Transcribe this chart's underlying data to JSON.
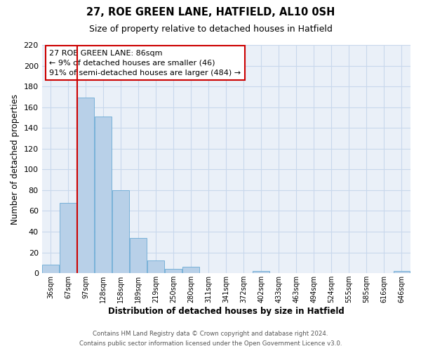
{
  "title": "27, ROE GREEN LANE, HATFIELD, AL10 0SH",
  "subtitle": "Size of property relative to detached houses in Hatfield",
  "xlabel": "Distribution of detached houses by size in Hatfield",
  "ylabel": "Number of detached properties",
  "bar_labels": [
    "36sqm",
    "67sqm",
    "97sqm",
    "128sqm",
    "158sqm",
    "189sqm",
    "219sqm",
    "250sqm",
    "280sqm",
    "311sqm",
    "341sqm",
    "372sqm",
    "402sqm",
    "433sqm",
    "463sqm",
    "494sqm",
    "524sqm",
    "555sqm",
    "585sqm",
    "616sqm",
    "646sqm"
  ],
  "bar_heights": [
    8,
    68,
    169,
    151,
    80,
    34,
    12,
    4,
    6,
    0,
    0,
    0,
    2,
    0,
    0,
    0,
    0,
    0,
    0,
    0,
    2
  ],
  "bar_color": "#b8d0e8",
  "bar_edge_color": "#6aaad4",
  "vline_color": "#cc0000",
  "vline_x": 1.5,
  "annotation_text_line1": "27 ROE GREEN LANE: 86sqm",
  "annotation_text_line2": "← 9% of detached houses are smaller (46)",
  "annotation_text_line3": "91% of semi-detached houses are larger (484) →",
  "ylim": [
    0,
    220
  ],
  "yticks": [
    0,
    20,
    40,
    60,
    80,
    100,
    120,
    140,
    160,
    180,
    200,
    220
  ],
  "grid_color": "#c8d8ec",
  "background_color": "#ffffff",
  "plot_bg_color": "#eaf0f8",
  "footer_line1": "Contains HM Land Registry data © Crown copyright and database right 2024.",
  "footer_line2": "Contains public sector information licensed under the Open Government Licence v3.0."
}
